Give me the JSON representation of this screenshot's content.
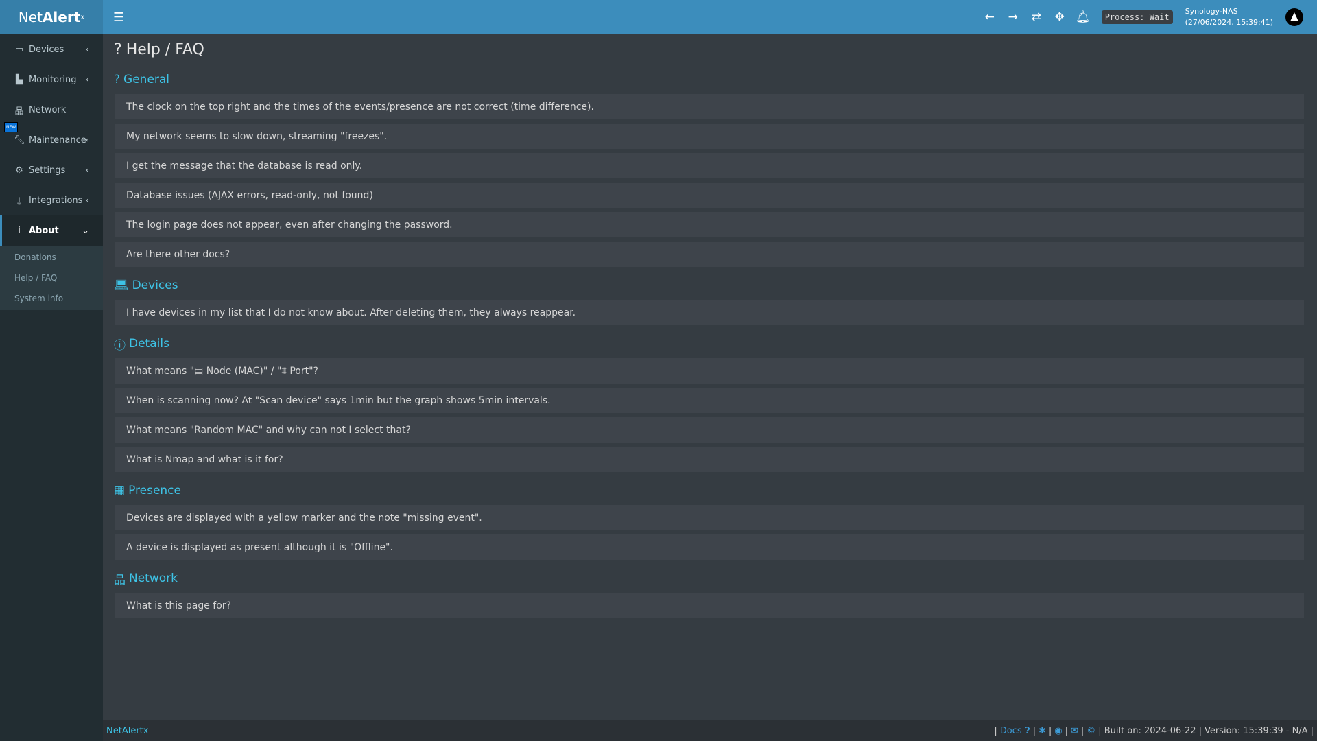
{
  "app": {
    "logo_main": "Net",
    "logo_bold": "Alert",
    "logo_sup": "x"
  },
  "header": {
    "process": "Process: Wait",
    "host": "Synology-NAS",
    "datetime": "(27/06/2024, 15:39:41)"
  },
  "sidebar": {
    "items": [
      {
        "label": "Devices",
        "icon": "laptop-icon"
      },
      {
        "label": "Monitoring",
        "icon": "chart-icon"
      },
      {
        "label": "Network",
        "icon": "network-icon"
      },
      {
        "label": "Maintenance",
        "icon": "wrench-icon",
        "badge": "NEW"
      },
      {
        "label": "Settings",
        "icon": "gear-icon"
      },
      {
        "label": "Integrations",
        "icon": "plug-icon"
      },
      {
        "label": "About",
        "icon": "info-icon"
      }
    ],
    "about_sub": [
      "Donations",
      "Help / FAQ",
      "System info"
    ]
  },
  "page": {
    "title": "Help / FAQ"
  },
  "sections": [
    {
      "title": "General",
      "icon": "question-icon",
      "items": [
        "The clock on the top right and the times of the events/presence are not correct (time difference).",
        "My network seems to slow down, streaming \"freezes\".",
        "I get the message that the database is read only.",
        "Database issues (AJAX errors, read-only, not found)",
        "The login page does not appear, even after changing the password.",
        "Are there other docs?"
      ]
    },
    {
      "title": "Devices",
      "icon": "laptop-icon",
      "items": [
        "I have devices in my list that I do not know about. After deleting them, they always reappear."
      ]
    },
    {
      "title": "Details",
      "icon": "info-circle-icon",
      "items": [
        "What means \"▤ Node (MAC)\" / \"⩩ Port\"?",
        "When is scanning now? At \"Scan device\" says 1min but the graph shows 5min intervals.",
        "What means \"Random MAC\" and why can not I select that?",
        "What is Nmap and what is it for?"
      ]
    },
    {
      "title": "Presence",
      "icon": "calendar-icon",
      "items": [
        "Devices are displayed with a yellow marker and the note \"missing event\".",
        "A device is displayed as present although it is \"Offline\"."
      ]
    },
    {
      "title": "Network",
      "icon": "network-icon",
      "items": [
        "What is this page for?"
      ]
    }
  ],
  "footer": {
    "brand": "NetAlertx",
    "docs": "Docs",
    "built": "Built on: 2024-06-22",
    "version": "Version: 15:39:39 - N/A"
  }
}
